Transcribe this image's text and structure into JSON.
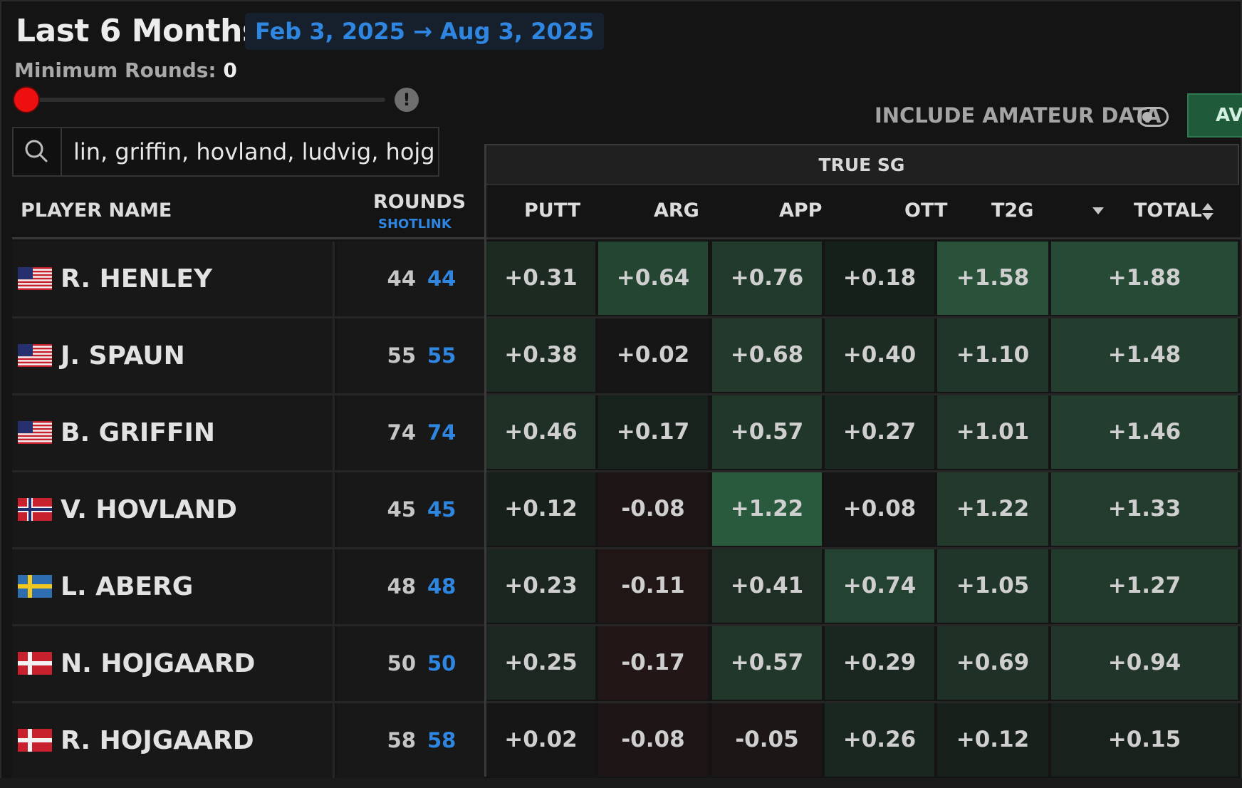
{
  "header": {
    "title": "Last 6 Months",
    "date_range": "Feb 3, 2025 → Aug 3, 2025",
    "min_rounds_label": "Minimum Rounds:",
    "min_rounds_value": "0",
    "info_symbol": "!"
  },
  "search": {
    "value": "lin, griffin, hovland, ludvig, hojg"
  },
  "controls": {
    "amateur_label": "INCLUDE AMATEUR DATA",
    "avg_tab": "AVG"
  },
  "table": {
    "group_label": "TRUE SG",
    "col_player": "PLAYER NAME",
    "col_rounds": "ROUNDS",
    "col_rounds_sub": "SHOTLINK",
    "stat_cols": [
      "PUTT",
      "ARG",
      "APP",
      "OTT",
      "T2G",
      "TOTAL"
    ],
    "rows": [
      {
        "flag": "us",
        "name": "R. HENLEY",
        "rounds": "44",
        "shotlink": "44",
        "stats": [
          "+0.31",
          "+0.64",
          "+0.76",
          "+0.18",
          "+1.58",
          "+1.88"
        ],
        "colors": [
          "#1c2a22",
          "#234532",
          "#223a2c",
          "#16201a",
          "#2a513a",
          "#264a36"
        ]
      },
      {
        "flag": "us",
        "name": "J. SPAUN",
        "rounds": "55",
        "shotlink": "55",
        "stats": [
          "+0.38",
          "+0.02",
          "+0.68",
          "+0.40",
          "+1.10",
          "+1.48"
        ],
        "colors": [
          "#1d2c23",
          "#161616",
          "#22392b",
          "#1d2c23",
          "#21362a",
          "#233e2f"
        ]
      },
      {
        "flag": "us",
        "name": "B. GRIFFIN",
        "rounds": "74",
        "shotlink": "74",
        "stats": [
          "+0.46",
          "+0.17",
          "+0.57",
          "+0.27",
          "+1.01",
          "+1.46"
        ],
        "colors": [
          "#1f3126",
          "#18221c",
          "#21372a",
          "#1a2720",
          "#213429",
          "#233d2e"
        ]
      },
      {
        "flag": "no",
        "name": "V. HOVLAND",
        "rounds": "45",
        "shotlink": "45",
        "stats": [
          "+0.12",
          "-0.08",
          "+1.22",
          "+0.08",
          "+1.22",
          "+1.33"
        ],
        "colors": [
          "#18201b",
          "#1e1616",
          "#2a5a3e",
          "#161616",
          "#22392b",
          "#233c2e"
        ]
      },
      {
        "flag": "se",
        "name": "L. ABERG",
        "rounds": "48",
        "shotlink": "48",
        "stats": [
          "+0.23",
          "-0.11",
          "+0.41",
          "+0.74",
          "+1.05",
          "+1.27"
        ],
        "colors": [
          "#1b2620",
          "#201616",
          "#1e2e24",
          "#234232",
          "#21362a",
          "#223a2c"
        ]
      },
      {
        "flag": "dk",
        "name": "N. HOJGAARD",
        "rounds": "50",
        "shotlink": "50",
        "stats": [
          "+0.25",
          "-0.17",
          "+0.57",
          "+0.29",
          "+0.69",
          "+0.94"
        ],
        "colors": [
          "#1b2720",
          "#231616",
          "#21372a",
          "#1a2720",
          "#1f3126",
          "#21352a"
        ]
      },
      {
        "flag": "dk",
        "name": "R. HOJGAARD",
        "rounds": "58",
        "shotlink": "58",
        "stats": [
          "+0.02",
          "-0.08",
          "-0.05",
          "+0.26",
          "+0.12",
          "+0.15"
        ],
        "colors": [
          "#161616",
          "#1e1616",
          "#1c1616",
          "#1a2720",
          "#18201b",
          "#18211c"
        ]
      }
    ]
  }
}
